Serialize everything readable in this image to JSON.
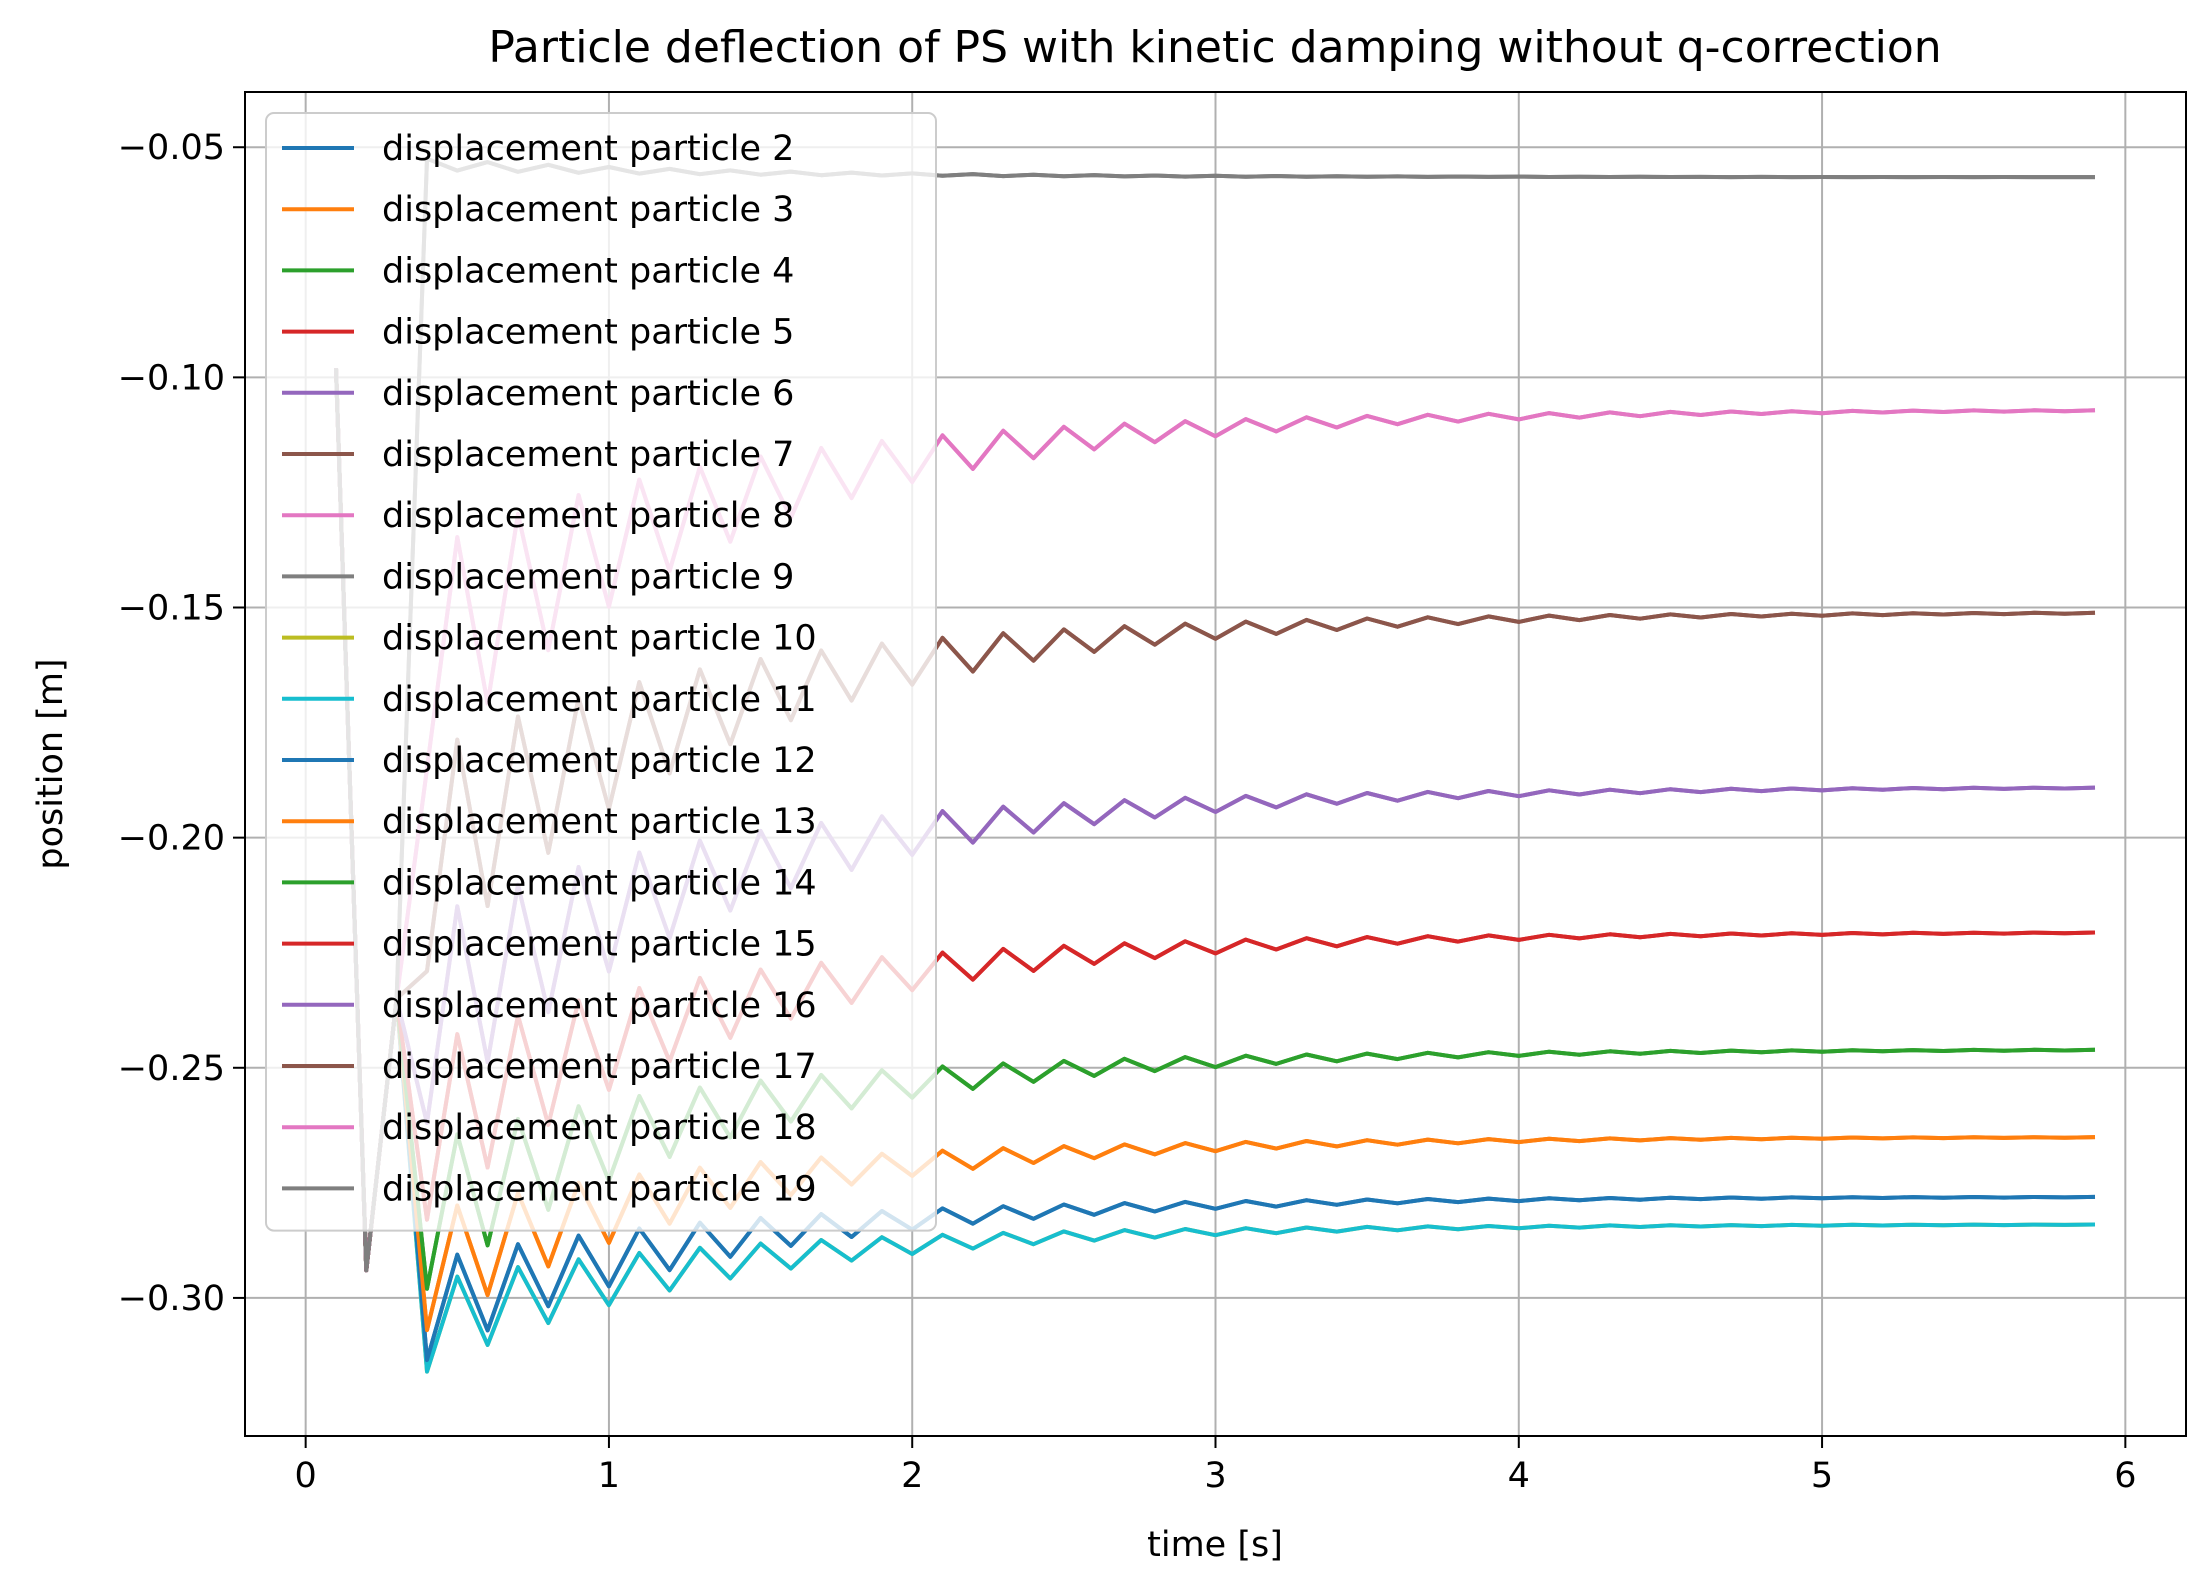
{
  "chart_data": {
    "type": "line",
    "title": "Particle deflection of PS with kinetic damping without q-correction",
    "xlabel": "time [s]",
    "ylabel": "position [m]",
    "xlim": [
      -0.2,
      6.2
    ],
    "ylim": [
      -0.33,
      -0.038
    ],
    "xticks": [
      0,
      1,
      2,
      3,
      4,
      5,
      6
    ],
    "xtick_labels": [
      "0",
      "1",
      "2",
      "3",
      "4",
      "5",
      "6"
    ],
    "yticks": [
      -0.05,
      -0.1,
      -0.15,
      -0.2,
      -0.25,
      -0.3
    ],
    "ytick_labels": [
      "−0.05",
      "−0.10",
      "−0.15",
      "−0.20",
      "−0.25",
      "−0.30"
    ],
    "grid": true,
    "legend_position": "top-left",
    "x": [
      0.1,
      0.2,
      0.3,
      0.4,
      0.5,
      0.6,
      0.7,
      0.8,
      0.9,
      1.0,
      1.1,
      1.2,
      1.3,
      1.4,
      1.5,
      1.6,
      1.7,
      1.8,
      1.9,
      2.0,
      2.1,
      2.2,
      2.3,
      2.4,
      2.5,
      2.6,
      2.7,
      2.8,
      2.9,
      3.0,
      3.1,
      3.2,
      3.3,
      3.4,
      3.5,
      3.6,
      3.7,
      3.8,
      3.9,
      4.0,
      4.1,
      4.2,
      4.3,
      4.4,
      4.5,
      4.6,
      4.7,
      4.8,
      4.9,
      5.0,
      5.1,
      5.2,
      5.3,
      5.4,
      5.5,
      5.6,
      5.7,
      5.8,
      5.9
    ],
    "series": [
      {
        "name": "displacement particle 2",
        "color": "#1f77b4",
        "final": -0.278,
        "first": -0.3135
      },
      {
        "name": "displacement particle 3",
        "color": "#ff7f0e",
        "final": -0.265,
        "first": -0.307
      },
      {
        "name": "displacement particle 4",
        "color": "#2ca02c",
        "final": -0.246,
        "first": -0.298
      },
      {
        "name": "displacement particle 5",
        "color": "#d62728",
        "final": -0.2205,
        "first": -0.283
      },
      {
        "name": "displacement particle 6",
        "color": "#9467bd",
        "final": -0.189,
        "first": -0.262
      },
      {
        "name": "displacement particle 7",
        "color": "#8c564b",
        "final": -0.151,
        "first": -0.229
      },
      {
        "name": "displacement particle 8",
        "color": "#e377c2",
        "final": -0.107,
        "first": -0.185
      },
      {
        "name": "displacement particle 9",
        "color": "#7f7f7f",
        "final": -0.0565,
        "first": -0.0525
      },
      {
        "name": "displacement particle 10",
        "color": "#bcbd22",
        "final": -0.284,
        "first": -0.316
      },
      {
        "name": "displacement particle 11",
        "color": "#17becf",
        "final": -0.284,
        "first": -0.316
      },
      {
        "name": "displacement particle 12",
        "color": "#1f77b4",
        "final": -0.278,
        "first": -0.3135
      },
      {
        "name": "displacement particle 13",
        "color": "#ff7f0e",
        "final": -0.265,
        "first": -0.307
      },
      {
        "name": "displacement particle 14",
        "color": "#2ca02c",
        "final": -0.246,
        "first": -0.298
      },
      {
        "name": "displacement particle 15",
        "color": "#d62728",
        "final": -0.2205,
        "first": -0.283
      },
      {
        "name": "displacement particle 16",
        "color": "#9467bd",
        "final": -0.189,
        "first": -0.262
      },
      {
        "name": "displacement particle 17",
        "color": "#8c564b",
        "final": -0.151,
        "first": -0.229
      },
      {
        "name": "displacement particle 18",
        "color": "#e377c2",
        "final": -0.107,
        "first": -0.185
      },
      {
        "name": "displacement particle 19",
        "color": "#7f7f7f",
        "final": -0.0565,
        "first": -0.0525
      }
    ]
  }
}
